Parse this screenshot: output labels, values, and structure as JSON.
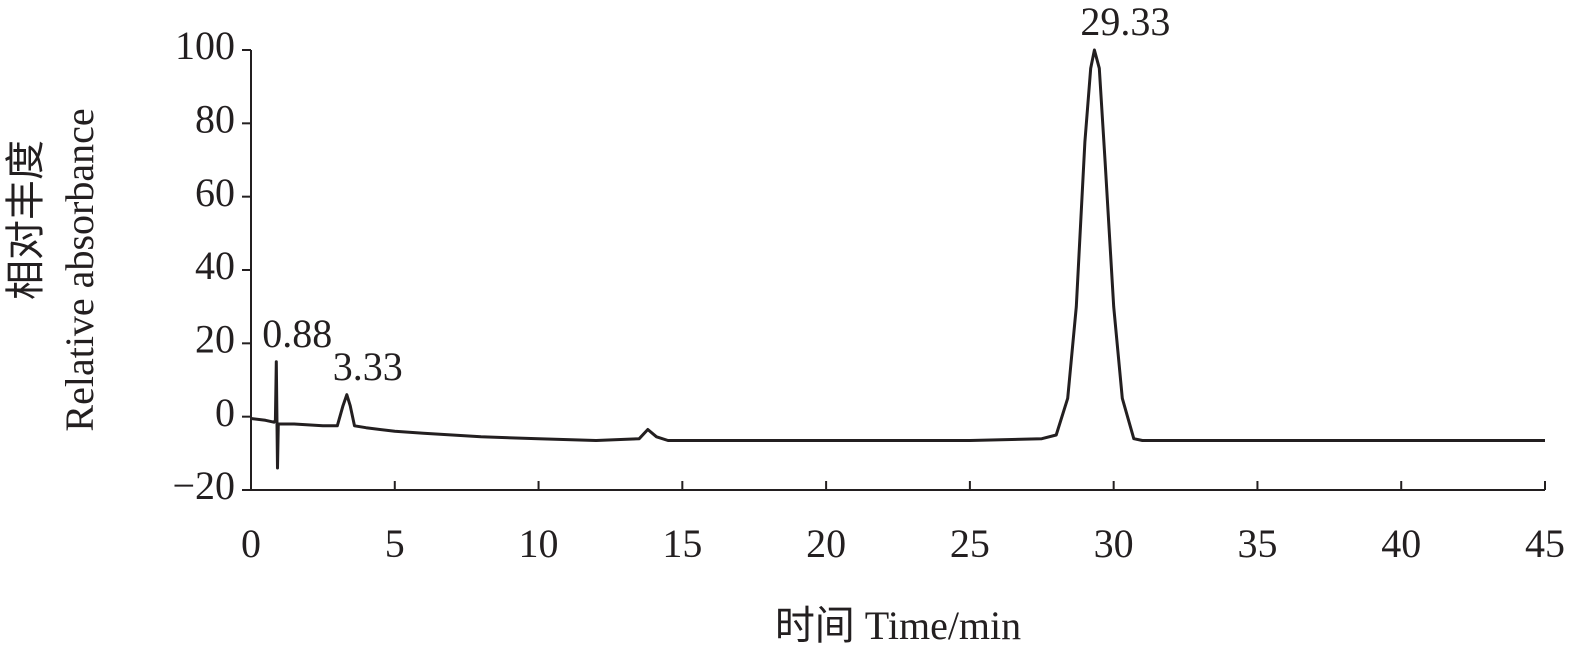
{
  "chart_data": {
    "type": "line",
    "x_label": "时间 Time/min",
    "y_label": [
      "相对丰度",
      "Relative absorbance"
    ],
    "x": [
      0,
      0.5,
      0.8,
      0.85,
      0.88,
      0.92,
      0.95,
      1.0,
      1.5,
      2.5,
      3.0,
      3.2,
      3.33,
      3.45,
      3.6,
      4,
      5,
      6,
      7,
      8,
      10,
      12,
      13.5,
      13.8,
      14.1,
      14.5,
      16,
      20,
      25,
      27.5,
      28.0,
      28.4,
      28.7,
      29.0,
      29.2,
      29.33,
      29.5,
      29.7,
      30.0,
      30.3,
      30.7,
      31,
      35,
      40,
      45
    ],
    "values": [
      -0.5,
      -1,
      -1.5,
      -1,
      15,
      -14,
      -2,
      -2,
      -2,
      -2.5,
      -2.5,
      3,
      6,
      3,
      -2.5,
      -3,
      -4,
      -4.5,
      -5,
      -5.5,
      -6,
      -6.5,
      -6,
      -3.5,
      -5.5,
      -6.5,
      -6.5,
      -6.5,
      -6.5,
      -6,
      -5,
      5,
      30,
      75,
      95,
      100,
      95,
      70,
      30,
      5,
      -6,
      -6.5,
      -6.5,
      -6.5,
      -6.5
    ],
    "color": "#231f20",
    "annotations": [
      {
        "x": 0.88,
        "text": "0.88"
      },
      {
        "x": 3.33,
        "text": "3.33"
      },
      {
        "x": 29.33,
        "text": "29.33"
      }
    ],
    "xlim": [
      0,
      45
    ],
    "xticks": [
      0,
      5,
      10,
      15,
      20,
      25,
      30,
      35,
      40,
      45
    ],
    "ylim": [
      -20,
      100
    ],
    "yticks": [
      {
        "value": -20,
        "label": "−20"
      },
      0,
      20,
      40,
      60,
      80,
      100
    ]
  }
}
